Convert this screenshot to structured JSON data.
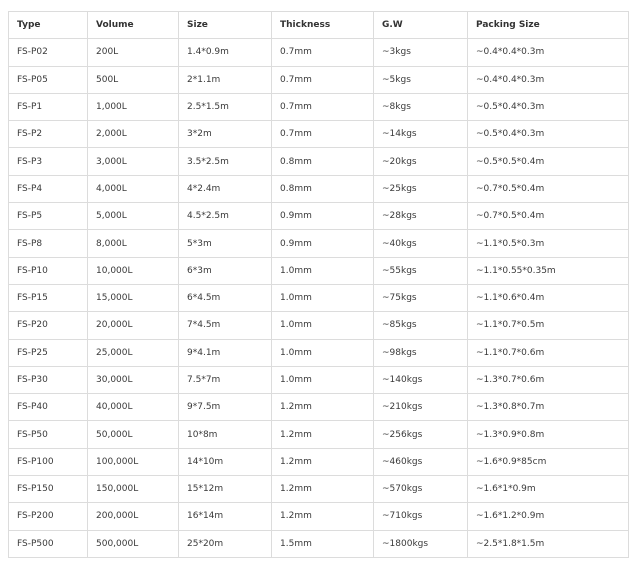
{
  "table": {
    "headers": [
      "Type",
      "Volume",
      "Size",
      "Thickness",
      "G.W",
      "Packing Size"
    ],
    "rows": [
      [
        "FS-P02",
        "200L",
        "1.4*0.9m",
        "0.7mm",
        "~3kgs",
        "~0.4*0.4*0.3m"
      ],
      [
        "FS-P05",
        "500L",
        "2*1.1m",
        "0.7mm",
        "~5kgs",
        "~0.4*0.4*0.3m"
      ],
      [
        "FS-P1",
        "1,000L",
        "2.5*1.5m",
        "0.7mm",
        "~8kgs",
        "~0.5*0.4*0.3m"
      ],
      [
        "FS-P2",
        "2,000L",
        "3*2m",
        "0.7mm",
        "~14kgs",
        "~0.5*0.4*0.3m"
      ],
      [
        "FS-P3",
        "3,000L",
        "3.5*2.5m",
        "0.8mm",
        "~20kgs",
        "~0.5*0.5*0.4m"
      ],
      [
        "FS-P4",
        "4,000L",
        "4*2.4m",
        "0.8mm",
        "~25kgs",
        "~0.7*0.5*0.4m"
      ],
      [
        "FS-P5",
        "5,000L",
        "4.5*2.5m",
        "0.9mm",
        "~28kgs",
        "~0.7*0.5*0.4m"
      ],
      [
        "FS-P8",
        "8,000L",
        "5*3m",
        "0.9mm",
        "~40kgs",
        "~1.1*0.5*0.3m"
      ],
      [
        "FS-P10",
        "10,000L",
        "6*3m",
        "1.0mm",
        "~55kgs",
        "~1.1*0.55*0.35m"
      ],
      [
        "FS-P15",
        "15,000L",
        "6*4.5m",
        "1.0mm",
        "~75kgs",
        "~1.1*0.6*0.4m"
      ],
      [
        "FS-P20",
        "20,000L",
        "7*4.5m",
        "1.0mm",
        "~85kgs",
        "~1.1*0.7*0.5m"
      ],
      [
        "FS-P25",
        "25,000L",
        "9*4.1m",
        "1.0mm",
        "~98kgs",
        "~1.1*0.7*0.6m"
      ],
      [
        "FS-P30",
        "30,000L",
        "7.5*7m",
        "1.0mm",
        "~140kgs",
        "~1.3*0.7*0.6m"
      ],
      [
        "FS-P40",
        "40,000L",
        "9*7.5m",
        "1.2mm",
        "~210kgs",
        "~1.3*0.8*0.7m"
      ],
      [
        "FS-P50",
        "50,000L",
        "10*8m",
        "1.2mm",
        "~256kgs",
        "~1.3*0.9*0.8m"
      ],
      [
        "FS-P100",
        "100,000L",
        "14*10m",
        "1.2mm",
        "~460kgs",
        "~1.6*0.9*85cm"
      ],
      [
        "FS-P150",
        "150,000L",
        "15*12m",
        "1.2mm",
        "~570kgs",
        "~1.6*1*0.9m"
      ],
      [
        "FS-P200",
        "200,000L",
        "16*14m",
        "1.2mm",
        "~710kgs",
        "~1.6*1.2*0.9m"
      ],
      [
        "FS-P500",
        "500,000L",
        "25*20m",
        "1.5mm",
        "~1800kgs",
        "~2.5*1.8*1.5m"
      ]
    ]
  }
}
